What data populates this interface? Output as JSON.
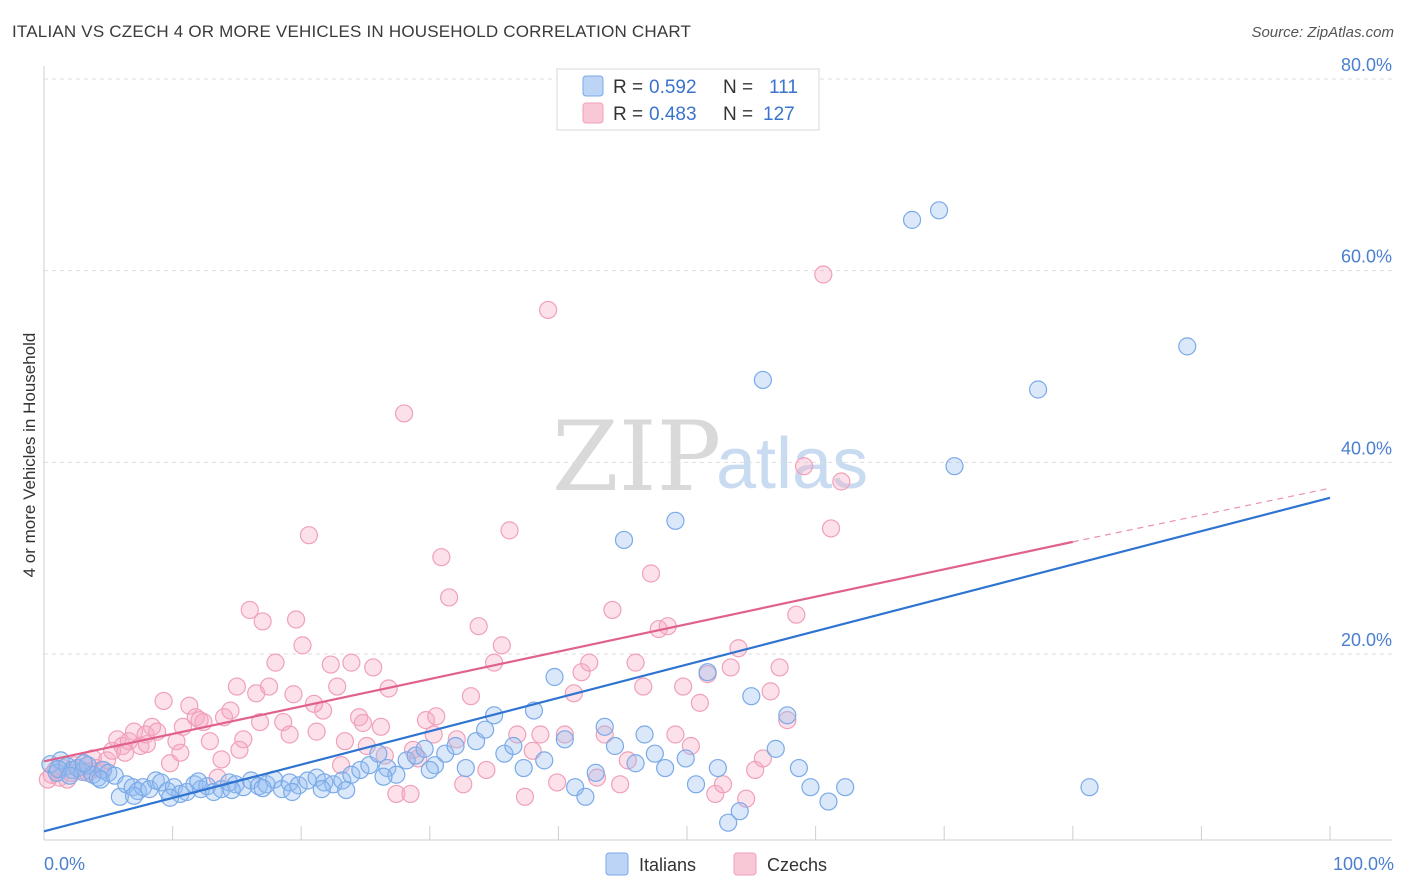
{
  "header": {
    "title": "ITALIAN VS CZECH 4 OR MORE VEHICLES IN HOUSEHOLD CORRELATION CHART",
    "source": "Source: ZipAtlas.com"
  },
  "watermark": {
    "zip": "ZIP",
    "atlas": "atlas"
  },
  "legend": {
    "italians": {
      "r_label": "R =",
      "r_value": "0.592",
      "n_label": "N =",
      "n_value": "111",
      "color": "#7aaae8"
    },
    "czechs": {
      "r_label": "R =",
      "r_value": "0.483",
      "n_label": "N =",
      "n_value": "127",
      "color": "#f0a0b8"
    }
  },
  "bottom_legend": {
    "italians": "Italians",
    "czechs": "Czechs"
  },
  "chart_data": {
    "type": "scatter",
    "title": "ITALIAN VS CZECH 4 OR MORE VEHICLES IN HOUSEHOLD CORRELATION CHART",
    "xlabel": "",
    "ylabel": "4 or more Vehicles in Household",
    "xlim": [
      0,
      100
    ],
    "ylim": [
      0,
      82
    ],
    "x_tick_labels": [
      "0.0%",
      "100.0%"
    ],
    "y_ticks": [
      20,
      40,
      60,
      80
    ],
    "y_tick_labels": [
      "20.0%",
      "40.0%",
      "60.0%",
      "80.0%"
    ],
    "grid": true,
    "legend_position": "top-center",
    "series": [
      {
        "name": "Italians",
        "color": "#7aaae8",
        "line_color": "#2f74d0",
        "trend": {
          "x": [
            0,
            100
          ],
          "y": [
            1.5,
            36.3
          ]
        },
        "points": [
          [
            0.5,
            8.5
          ],
          [
            1.0,
            7.6
          ],
          [
            1.3,
            8.9
          ],
          [
            1.8,
            8.3
          ],
          [
            2.2,
            7.9
          ],
          [
            2.6,
            8.1
          ],
          [
            3.0,
            7.7
          ],
          [
            3.4,
            8.4
          ],
          [
            3.8,
            7.4
          ],
          [
            4.2,
            7.1
          ],
          [
            4.6,
            7.9
          ],
          [
            5.0,
            7.6
          ],
          [
            5.5,
            7.3
          ],
          [
            5.9,
            5.1
          ],
          [
            6.4,
            6.4
          ],
          [
            6.9,
            6.1
          ],
          [
            7.3,
            5.7
          ],
          [
            7.7,
            6.1
          ],
          [
            8.2,
            5.9
          ],
          [
            8.7,
            6.8
          ],
          [
            9.1,
            6.6
          ],
          [
            9.6,
            5.7
          ],
          [
            10.1,
            6.1
          ],
          [
            10.6,
            5.4
          ],
          [
            11.1,
            5.6
          ],
          [
            11.7,
            6.4
          ],
          [
            12.2,
            5.9
          ],
          [
            12.7,
            6.2
          ],
          [
            13.2,
            5.6
          ],
          [
            13.8,
            5.9
          ],
          [
            14.4,
            6.6
          ],
          [
            14.9,
            6.4
          ],
          [
            15.5,
            6.1
          ],
          [
            16.1,
            6.8
          ],
          [
            16.7,
            6.2
          ],
          [
            17.3,
            6.4
          ],
          [
            17.9,
            6.9
          ],
          [
            18.5,
            5.9
          ],
          [
            19.1,
            6.6
          ],
          [
            19.8,
            6.3
          ],
          [
            20.5,
            6.8
          ],
          [
            21.2,
            7.1
          ],
          [
            21.8,
            6.6
          ],
          [
            22.5,
            6.4
          ],
          [
            23.2,
            6.8
          ],
          [
            23.9,
            7.4
          ],
          [
            24.6,
            7.9
          ],
          [
            25.3,
            8.4
          ],
          [
            26.0,
            9.6
          ],
          [
            26.7,
            8.1
          ],
          [
            27.4,
            7.4
          ],
          [
            28.2,
            8.9
          ],
          [
            28.9,
            9.4
          ],
          [
            29.6,
            10.1
          ],
          [
            30.4,
            8.4
          ],
          [
            31.2,
            9.6
          ],
          [
            32.0,
            10.4
          ],
          [
            32.8,
            8.1
          ],
          [
            33.6,
            10.9
          ],
          [
            34.3,
            12.1
          ],
          [
            35.0,
            13.6
          ],
          [
            35.8,
            9.6
          ],
          [
            36.5,
            10.4
          ],
          [
            37.3,
            8.1
          ],
          [
            38.1,
            14.1
          ],
          [
            38.9,
            8.9
          ],
          [
            39.7,
            17.6
          ],
          [
            40.5,
            11.1
          ],
          [
            41.3,
            6.1
          ],
          [
            42.1,
            5.1
          ],
          [
            42.9,
            7.6
          ],
          [
            43.6,
            12.4
          ],
          [
            44.4,
            10.4
          ],
          [
            45.1,
            31.9
          ],
          [
            46.0,
            8.6
          ],
          [
            46.7,
            11.6
          ],
          [
            47.5,
            9.6
          ],
          [
            48.3,
            8.1
          ],
          [
            49.1,
            33.9
          ],
          [
            49.9,
            9.1
          ],
          [
            50.7,
            6.4
          ],
          [
            51.6,
            18.1
          ],
          [
            52.4,
            8.1
          ],
          [
            53.2,
            2.4
          ],
          [
            54.1,
            3.6
          ],
          [
            55.0,
            15.6
          ],
          [
            55.9,
            48.6
          ],
          [
            56.9,
            10.1
          ],
          [
            57.8,
            13.6
          ],
          [
            58.7,
            8.1
          ],
          [
            59.6,
            6.1
          ],
          [
            61.0,
            4.6
          ],
          [
            62.3,
            6.1
          ],
          [
            67.5,
            65.3
          ],
          [
            69.6,
            66.3
          ],
          [
            70.8,
            39.6
          ],
          [
            77.3,
            47.6
          ],
          [
            81.3,
            6.1
          ],
          [
            88.9,
            52.1
          ],
          [
            1.1,
            8.0
          ],
          [
            2.0,
            7.3
          ],
          [
            3.1,
            8.6
          ],
          [
            4.4,
            6.9
          ],
          [
            7.0,
            5.2
          ],
          [
            9.8,
            5.0
          ],
          [
            12.0,
            6.7
          ],
          [
            14.6,
            5.8
          ],
          [
            17.0,
            6.0
          ],
          [
            19.3,
            5.6
          ],
          [
            21.6,
            5.9
          ],
          [
            23.5,
            5.8
          ],
          [
            26.4,
            7.2
          ],
          [
            30.0,
            7.9
          ]
        ]
      },
      {
        "name": "Czechs",
        "color": "#f0a0b8",
        "line_color": "#e0628c",
        "trend": {
          "x": [
            0,
            80
          ],
          "y": [
            8.8,
            31.7
          ]
        },
        "dashed_extension": {
          "x": [
            80,
            100
          ],
          "y": [
            31.7,
            37.3
          ]
        },
        "points": [
          [
            0.3,
            6.9
          ],
          [
            0.6,
            7.4
          ],
          [
            0.9,
            7.9
          ],
          [
            1.2,
            7.1
          ],
          [
            1.5,
            8.1
          ],
          [
            1.8,
            6.9
          ],
          [
            2.1,
            7.6
          ],
          [
            2.4,
            8.4
          ],
          [
            2.8,
            7.9
          ],
          [
            3.1,
            8.6
          ],
          [
            3.4,
            7.6
          ],
          [
            3.8,
            9.1
          ],
          [
            4.1,
            8.1
          ],
          [
            4.5,
            7.9
          ],
          [
            4.9,
            8.9
          ],
          [
            5.3,
            9.9
          ],
          [
            5.7,
            11.1
          ],
          [
            6.1,
            10.4
          ],
          [
            6.6,
            10.9
          ],
          [
            7.0,
            11.9
          ],
          [
            7.5,
            10.4
          ],
          [
            7.9,
            11.6
          ],
          [
            8.4,
            12.4
          ],
          [
            8.8,
            11.9
          ],
          [
            9.3,
            15.1
          ],
          [
            9.8,
            8.6
          ],
          [
            10.3,
            10.9
          ],
          [
            10.8,
            12.4
          ],
          [
            11.3,
            14.6
          ],
          [
            11.8,
            13.4
          ],
          [
            12.4,
            12.9
          ],
          [
            12.9,
            10.9
          ],
          [
            13.5,
            7.1
          ],
          [
            14.0,
            13.4
          ],
          [
            14.5,
            14.1
          ],
          [
            15.0,
            16.6
          ],
          [
            15.5,
            11.1
          ],
          [
            16.0,
            24.6
          ],
          [
            16.5,
            15.9
          ],
          [
            17.0,
            23.4
          ],
          [
            17.5,
            16.6
          ],
          [
            18.0,
            19.1
          ],
          [
            18.6,
            12.9
          ],
          [
            19.1,
            11.6
          ],
          [
            19.6,
            23.6
          ],
          [
            20.1,
            20.9
          ],
          [
            20.6,
            32.4
          ],
          [
            21.2,
            11.9
          ],
          [
            21.7,
            14.1
          ],
          [
            22.3,
            18.9
          ],
          [
            22.8,
            16.6
          ],
          [
            23.4,
            10.9
          ],
          [
            23.9,
            19.1
          ],
          [
            24.5,
            13.4
          ],
          [
            25.1,
            10.4
          ],
          [
            25.6,
            18.6
          ],
          [
            26.2,
            12.4
          ],
          [
            26.8,
            16.4
          ],
          [
            27.4,
            5.4
          ],
          [
            28.0,
            45.1
          ],
          [
            28.5,
            5.4
          ],
          [
            29.1,
            9.1
          ],
          [
            29.7,
            13.1
          ],
          [
            30.3,
            11.6
          ],
          [
            30.9,
            30.1
          ],
          [
            31.5,
            25.9
          ],
          [
            32.1,
            11.1
          ],
          [
            32.6,
            6.4
          ],
          [
            33.2,
            15.6
          ],
          [
            33.8,
            22.9
          ],
          [
            34.4,
            7.9
          ],
          [
            35.0,
            19.1
          ],
          [
            35.6,
            20.9
          ],
          [
            36.2,
            32.9
          ],
          [
            36.8,
            11.6
          ],
          [
            37.4,
            5.1
          ],
          [
            38.0,
            9.9
          ],
          [
            38.6,
            11.6
          ],
          [
            39.2,
            55.9
          ],
          [
            39.9,
            6.6
          ],
          [
            40.5,
            11.6
          ],
          [
            41.2,
            15.9
          ],
          [
            41.8,
            18.1
          ],
          [
            42.4,
            19.1
          ],
          [
            43.0,
            7.1
          ],
          [
            43.6,
            11.6
          ],
          [
            44.2,
            24.6
          ],
          [
            44.8,
            6.4
          ],
          [
            45.4,
            8.9
          ],
          [
            46.0,
            19.1
          ],
          [
            46.6,
            16.6
          ],
          [
            47.2,
            28.4
          ],
          [
            47.8,
            22.6
          ],
          [
            48.5,
            22.9
          ],
          [
            49.1,
            11.6
          ],
          [
            49.7,
            16.6
          ],
          [
            50.3,
            10.4
          ],
          [
            51.0,
            14.9
          ],
          [
            51.6,
            17.9
          ],
          [
            52.2,
            5.4
          ],
          [
            52.8,
            6.4
          ],
          [
            53.4,
            18.6
          ],
          [
            54.0,
            20.6
          ],
          [
            54.6,
            4.9
          ],
          [
            55.3,
            7.9
          ],
          [
            55.9,
            9.1
          ],
          [
            56.5,
            16.1
          ],
          [
            57.2,
            18.6
          ],
          [
            57.8,
            13.1
          ],
          [
            58.5,
            24.1
          ],
          [
            59.1,
            39.6
          ],
          [
            60.6,
            59.6
          ],
          [
            61.2,
            33.1
          ],
          [
            62.0,
            38.0
          ],
          [
            3.6,
            7.8
          ],
          [
            6.3,
            9.7
          ],
          [
            8.0,
            10.6
          ],
          [
            10.6,
            9.7
          ],
          [
            12.1,
            13.1
          ],
          [
            13.8,
            9.0
          ],
          [
            15.2,
            10.0
          ],
          [
            16.8,
            12.9
          ],
          [
            19.4,
            15.8
          ],
          [
            21.0,
            14.8
          ],
          [
            23.1,
            8.4
          ],
          [
            24.8,
            12.8
          ],
          [
            26.5,
            9.4
          ],
          [
            28.7,
            10.0
          ],
          [
            30.5,
            13.5
          ]
        ]
      }
    ]
  }
}
